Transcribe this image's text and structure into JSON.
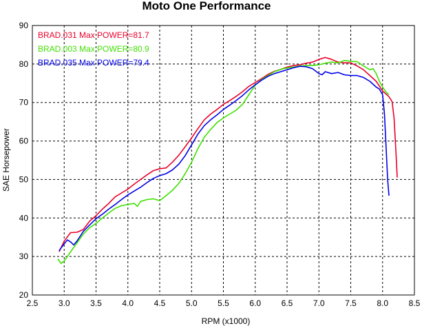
{
  "chart_data": {
    "type": "line",
    "title": "Moto One Performance",
    "xlabel": "RPM (x1000)",
    "ylabel": "SAE Horsepower",
    "xlim": [
      2.5,
      8.5
    ],
    "ylim": [
      20,
      90
    ],
    "x_ticks": [
      "2.5",
      "3.0",
      "3.5",
      "4.0",
      "4.5",
      "5.0",
      "5.5",
      "6.0",
      "6.5",
      "7.0",
      "7.5",
      "8.0",
      "8.5"
    ],
    "y_ticks": [
      "20",
      "30",
      "40",
      "50",
      "60",
      "70",
      "80",
      "90"
    ],
    "grid": true,
    "legend_position": "top-left",
    "series": [
      {
        "name": "BRAD.031",
        "legend_text": "BRAD.031  Max POWER=81.7",
        "color": "#e8002a",
        "points": [
          [
            2.92,
            31.2
          ],
          [
            3.0,
            34.0
          ],
          [
            3.1,
            36.2
          ],
          [
            3.2,
            36.3
          ],
          [
            3.3,
            37.0
          ],
          [
            3.4,
            39.2
          ],
          [
            3.5,
            40.6
          ],
          [
            3.6,
            42.3
          ],
          [
            3.7,
            43.8
          ],
          [
            3.8,
            45.5
          ],
          [
            3.9,
            46.5
          ],
          [
            4.0,
            47.5
          ],
          [
            4.1,
            48.8
          ],
          [
            4.2,
            50.0
          ],
          [
            4.3,
            51.2
          ],
          [
            4.4,
            52.3
          ],
          [
            4.5,
            52.8
          ],
          [
            4.6,
            53.0
          ],
          [
            4.7,
            54.5
          ],
          [
            4.8,
            56.3
          ],
          [
            4.9,
            58.5
          ],
          [
            5.0,
            60.8
          ],
          [
            5.1,
            63.2
          ],
          [
            5.2,
            65.5
          ],
          [
            5.3,
            67.0
          ],
          [
            5.4,
            68.2
          ],
          [
            5.5,
            69.5
          ],
          [
            5.6,
            70.5
          ],
          [
            5.7,
            71.6
          ],
          [
            5.8,
            72.8
          ],
          [
            5.9,
            74.2
          ],
          [
            6.0,
            75.2
          ],
          [
            6.1,
            76.2
          ],
          [
            6.2,
            77.3
          ],
          [
            6.3,
            78.1
          ],
          [
            6.4,
            78.6
          ],
          [
            6.5,
            79.2
          ],
          [
            6.6,
            79.6
          ],
          [
            6.7,
            79.8
          ],
          [
            6.8,
            80.2
          ],
          [
            6.9,
            80.5
          ],
          [
            7.0,
            81.2
          ],
          [
            7.1,
            81.7
          ],
          [
            7.2,
            81.2
          ],
          [
            7.3,
            80.5
          ],
          [
            7.4,
            80.3
          ],
          [
            7.5,
            80.3
          ],
          [
            7.6,
            79.5
          ],
          [
            7.7,
            78.5
          ],
          [
            7.8,
            77.0
          ],
          [
            7.9,
            75.5
          ],
          [
            8.0,
            73.0
          ],
          [
            8.1,
            71.5
          ],
          [
            8.15,
            70.2
          ],
          [
            8.18,
            66.0
          ],
          [
            8.21,
            57.0
          ],
          [
            8.23,
            50.5
          ]
        ]
      },
      {
        "name": "BRAD.003",
        "legend_text": "BRAD.003  Max POWER=80.9",
        "color": "#3ee000",
        "points": [
          [
            2.9,
            29.4
          ],
          [
            2.95,
            28.2
          ],
          [
            3.0,
            28.8
          ],
          [
            3.1,
            31.2
          ],
          [
            3.2,
            33.5
          ],
          [
            3.3,
            35.8
          ],
          [
            3.4,
            37.5
          ],
          [
            3.5,
            38.6
          ],
          [
            3.6,
            40.0
          ],
          [
            3.7,
            41.3
          ],
          [
            3.8,
            42.5
          ],
          [
            3.9,
            43.2
          ],
          [
            4.0,
            43.5
          ],
          [
            4.1,
            43.8
          ],
          [
            4.15,
            43.0
          ],
          [
            4.2,
            44.3
          ],
          [
            4.3,
            44.8
          ],
          [
            4.4,
            45.0
          ],
          [
            4.5,
            44.5
          ],
          [
            4.6,
            45.8
          ],
          [
            4.7,
            47.2
          ],
          [
            4.8,
            49.0
          ],
          [
            4.9,
            51.5
          ],
          [
            5.0,
            54.5
          ],
          [
            5.1,
            58.0
          ],
          [
            5.2,
            61.0
          ],
          [
            5.3,
            63.0
          ],
          [
            5.4,
            64.8
          ],
          [
            5.5,
            66.0
          ],
          [
            5.6,
            67.0
          ],
          [
            5.7,
            68.0
          ],
          [
            5.8,
            69.5
          ],
          [
            5.9,
            72.0
          ],
          [
            6.0,
            74.5
          ],
          [
            6.1,
            76.0
          ],
          [
            6.2,
            77.0
          ],
          [
            6.3,
            78.0
          ],
          [
            6.4,
            78.6
          ],
          [
            6.5,
            79.0
          ],
          [
            6.6,
            79.2
          ],
          [
            6.7,
            79.5
          ],
          [
            6.8,
            79.6
          ],
          [
            6.9,
            79.6
          ],
          [
            7.0,
            79.8
          ],
          [
            7.1,
            80.2
          ],
          [
            7.2,
            80.5
          ],
          [
            7.3,
            80.3
          ],
          [
            7.4,
            80.9
          ],
          [
            7.5,
            80.7
          ],
          [
            7.6,
            80.6
          ],
          [
            7.7,
            79.5
          ],
          [
            7.8,
            78.5
          ],
          [
            7.85,
            78.8
          ],
          [
            7.9,
            77.5
          ],
          [
            7.95,
            75.5
          ],
          [
            8.0,
            74.0
          ],
          [
            8.05,
            72.8
          ],
          [
            8.1,
            72.0
          ]
        ]
      },
      {
        "name": "BRAD.035",
        "legend_text": "BRAD.035  Max POWER=79.4",
        "color": "#0000e8",
        "points": [
          [
            2.92,
            31.5
          ],
          [
            3.0,
            33.3
          ],
          [
            3.05,
            34.3
          ],
          [
            3.1,
            33.8
          ],
          [
            3.15,
            33.0
          ],
          [
            3.2,
            34.0
          ],
          [
            3.3,
            36.5
          ],
          [
            3.4,
            38.2
          ],
          [
            3.5,
            39.8
          ],
          [
            3.6,
            41.0
          ],
          [
            3.7,
            42.3
          ],
          [
            3.8,
            43.5
          ],
          [
            3.9,
            44.8
          ],
          [
            4.0,
            46.0
          ],
          [
            4.1,
            47.0
          ],
          [
            4.2,
            48.0
          ],
          [
            4.3,
            49.2
          ],
          [
            4.4,
            50.3
          ],
          [
            4.5,
            51.0
          ],
          [
            4.6,
            51.5
          ],
          [
            4.7,
            52.5
          ],
          [
            4.8,
            54.0
          ],
          [
            4.9,
            56.2
          ],
          [
            5.0,
            59.0
          ],
          [
            5.1,
            61.8
          ],
          [
            5.2,
            64.0
          ],
          [
            5.3,
            65.5
          ],
          [
            5.4,
            66.8
          ],
          [
            5.5,
            68.2
          ],
          [
            5.6,
            69.3
          ],
          [
            5.7,
            70.5
          ],
          [
            5.8,
            71.8
          ],
          [
            5.9,
            73.3
          ],
          [
            6.0,
            74.6
          ],
          [
            6.1,
            75.8
          ],
          [
            6.2,
            76.8
          ],
          [
            6.3,
            77.5
          ],
          [
            6.4,
            78.0
          ],
          [
            6.5,
            78.5
          ],
          [
            6.6,
            79.0
          ],
          [
            6.7,
            79.4
          ],
          [
            6.8,
            79.3
          ],
          [
            6.9,
            78.8
          ],
          [
            7.0,
            77.5
          ],
          [
            7.05,
            77.2
          ],
          [
            7.1,
            78.0
          ],
          [
            7.2,
            77.5
          ],
          [
            7.3,
            77.8
          ],
          [
            7.4,
            77.2
          ],
          [
            7.5,
            77.0
          ],
          [
            7.6,
            77.0
          ],
          [
            7.7,
            76.5
          ],
          [
            7.8,
            75.5
          ],
          [
            7.9,
            74.0
          ],
          [
            7.95,
            73.5
          ],
          [
            8.0,
            72.0
          ],
          [
            8.03,
            67.0
          ],
          [
            8.05,
            60.0
          ],
          [
            8.08,
            50.0
          ],
          [
            8.1,
            45.8
          ]
        ]
      }
    ]
  }
}
